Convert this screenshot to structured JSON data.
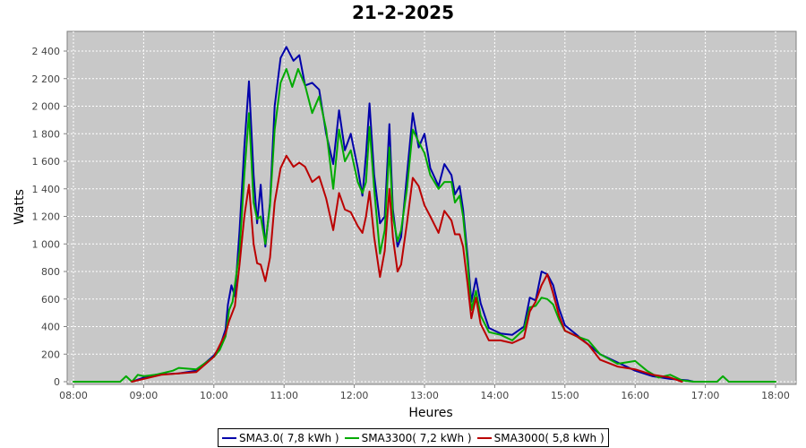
{
  "chart_data": {
    "type": "line",
    "title": "21-2-2025",
    "xlabel": "Heures",
    "ylabel": "Watts",
    "xlim": [
      "08:00",
      "18:00"
    ],
    "ylim": [
      0,
      2500
    ],
    "x_ticks": [
      "08:00",
      "09:00",
      "10:00",
      "11:00",
      "12:00",
      "13:00",
      "14:00",
      "15:00",
      "16:00",
      "17:00",
      "18:00"
    ],
    "y_ticks": [
      "0",
      "200",
      "400",
      "600",
      "800",
      "1 000",
      "1 200",
      "1 400",
      "1 600",
      "1 800",
      "2 000",
      "2 200",
      "2 400"
    ],
    "grid": true,
    "legend_position": "bottom",
    "series": [
      {
        "name": "SMA3.0( 7,8 kWh )",
        "color": "#0000aa",
        "points": [
          [
            "08:50",
            0
          ],
          [
            "09:00",
            30
          ],
          [
            "09:10",
            50
          ],
          [
            "09:30",
            60
          ],
          [
            "09:45",
            80
          ],
          [
            "10:00",
            190
          ],
          [
            "10:05",
            250
          ],
          [
            "10:10",
            380
          ],
          [
            "10:12",
            560
          ],
          [
            "10:15",
            700
          ],
          [
            "10:18",
            620
          ],
          [
            "10:22",
            1100
          ],
          [
            "10:26",
            1700
          ],
          [
            "10:30",
            2180
          ],
          [
            "10:34",
            1500
          ],
          [
            "10:37",
            1150
          ],
          [
            "10:40",
            1430
          ],
          [
            "10:44",
            980
          ],
          [
            "10:48",
            1300
          ],
          [
            "10:52",
            2000
          ],
          [
            "10:57",
            2350
          ],
          [
            "11:02",
            2430
          ],
          [
            "11:08",
            2330
          ],
          [
            "11:13",
            2370
          ],
          [
            "11:18",
            2150
          ],
          [
            "11:24",
            2170
          ],
          [
            "11:30",
            2120
          ],
          [
            "11:36",
            1800
          ],
          [
            "11:42",
            1580
          ],
          [
            "11:47",
            1970
          ],
          [
            "11:52",
            1680
          ],
          [
            "11:57",
            1800
          ],
          [
            "12:03",
            1550
          ],
          [
            "12:07",
            1350
          ],
          [
            "12:10",
            1650
          ],
          [
            "12:13",
            2020
          ],
          [
            "12:17",
            1500
          ],
          [
            "12:22",
            1150
          ],
          [
            "12:26",
            1200
          ],
          [
            "12:30",
            1870
          ],
          [
            "12:33",
            1250
          ],
          [
            "12:37",
            980
          ],
          [
            "12:40",
            1050
          ],
          [
            "12:45",
            1500
          ],
          [
            "12:50",
            1950
          ],
          [
            "12:55",
            1700
          ],
          [
            "13:00",
            1800
          ],
          [
            "13:05",
            1550
          ],
          [
            "13:12",
            1420
          ],
          [
            "13:17",
            1580
          ],
          [
            "13:23",
            1500
          ],
          [
            "13:26",
            1360
          ],
          [
            "13:30",
            1420
          ],
          [
            "13:33",
            1250
          ],
          [
            "13:37",
            900
          ],
          [
            "13:40",
            580
          ],
          [
            "13:44",
            750
          ],
          [
            "13:48",
            570
          ],
          [
            "13:55",
            390
          ],
          [
            "14:05",
            350
          ],
          [
            "14:15",
            340
          ],
          [
            "14:25",
            400
          ],
          [
            "14:30",
            610
          ],
          [
            "14:35",
            590
          ],
          [
            "14:40",
            800
          ],
          [
            "14:45",
            780
          ],
          [
            "14:50",
            700
          ],
          [
            "14:55",
            530
          ],
          [
            "15:00",
            410
          ],
          [
            "15:10",
            340
          ],
          [
            "15:20",
            270
          ],
          [
            "15:30",
            200
          ],
          [
            "15:45",
            140
          ],
          [
            "16:00",
            80
          ],
          [
            "16:15",
            40
          ],
          [
            "16:30",
            20
          ],
          [
            "16:45",
            10
          ],
          [
            "16:50",
            0
          ]
        ]
      },
      {
        "name": "SMA3300( 7,2 kWh )",
        "color": "#00aa00",
        "points": [
          [
            "08:00",
            0
          ],
          [
            "08:40",
            0
          ],
          [
            "08:45",
            40
          ],
          [
            "08:50",
            0
          ],
          [
            "08:55",
            50
          ],
          [
            "09:00",
            40
          ],
          [
            "09:10",
            50
          ],
          [
            "09:25",
            80
          ],
          [
            "09:30",
            100
          ],
          [
            "09:45",
            90
          ],
          [
            "10:00",
            180
          ],
          [
            "10:05",
            230
          ],
          [
            "10:10",
            330
          ],
          [
            "10:13",
            520
          ],
          [
            "10:16",
            580
          ],
          [
            "10:22",
            950
          ],
          [
            "10:26",
            1500
          ],
          [
            "10:30",
            1950
          ],
          [
            "10:34",
            1300
          ],
          [
            "10:37",
            1180
          ],
          [
            "10:40",
            1200
          ],
          [
            "10:44",
            1000
          ],
          [
            "10:48",
            1280
          ],
          [
            "10:52",
            1830
          ],
          [
            "10:57",
            2170
          ],
          [
            "11:02",
            2270
          ],
          [
            "11:07",
            2140
          ],
          [
            "11:12",
            2270
          ],
          [
            "11:18",
            2150
          ],
          [
            "11:24",
            1950
          ],
          [
            "11:30",
            2070
          ],
          [
            "11:36",
            1830
          ],
          [
            "11:42",
            1400
          ],
          [
            "11:47",
            1830
          ],
          [
            "11:52",
            1600
          ],
          [
            "11:57",
            1680
          ],
          [
            "12:03",
            1450
          ],
          [
            "12:07",
            1370
          ],
          [
            "12:10",
            1450
          ],
          [
            "12:13",
            1850
          ],
          [
            "12:17",
            1400
          ],
          [
            "12:22",
            930
          ],
          [
            "12:26",
            1100
          ],
          [
            "12:30",
            1700
          ],
          [
            "12:33",
            1200
          ],
          [
            "12:37",
            1020
          ],
          [
            "12:40",
            1100
          ],
          [
            "12:45",
            1400
          ],
          [
            "12:50",
            1830
          ],
          [
            "12:55",
            1740
          ],
          [
            "13:00",
            1660
          ],
          [
            "13:05",
            1500
          ],
          [
            "13:12",
            1400
          ],
          [
            "13:17",
            1450
          ],
          [
            "13:23",
            1450
          ],
          [
            "13:26",
            1300
          ],
          [
            "13:30",
            1350
          ],
          [
            "13:33",
            1200
          ],
          [
            "13:37",
            850
          ],
          [
            "13:40",
            520
          ],
          [
            "13:44",
            660
          ],
          [
            "13:48",
            480
          ],
          [
            "13:55",
            360
          ],
          [
            "14:05",
            340
          ],
          [
            "14:15",
            300
          ],
          [
            "14:25",
            380
          ],
          [
            "14:30",
            540
          ],
          [
            "14:35",
            550
          ],
          [
            "14:40",
            610
          ],
          [
            "14:45",
            600
          ],
          [
            "14:50",
            560
          ],
          [
            "14:55",
            450
          ],
          [
            "15:00",
            370
          ],
          [
            "15:10",
            330
          ],
          [
            "15:20",
            300
          ],
          [
            "15:30",
            200
          ],
          [
            "15:45",
            130
          ],
          [
            "16:00",
            150
          ],
          [
            "16:10",
            80
          ],
          [
            "16:20",
            30
          ],
          [
            "16:30",
            50
          ],
          [
            "16:40",
            10
          ],
          [
            "16:50",
            0
          ],
          [
            "17:00",
            0
          ],
          [
            "17:10",
            0
          ],
          [
            "17:15",
            40
          ],
          [
            "17:20",
            0
          ],
          [
            "18:00",
            0
          ]
        ]
      },
      {
        "name": "SMA3000( 5,8 kWh )",
        "color": "#bb0000",
        "points": [
          [
            "08:50",
            0
          ],
          [
            "09:00",
            20
          ],
          [
            "09:15",
            50
          ],
          [
            "09:30",
            60
          ],
          [
            "09:45",
            70
          ],
          [
            "10:00",
            180
          ],
          [
            "10:10",
            350
          ],
          [
            "10:13",
            440
          ],
          [
            "10:18",
            550
          ],
          [
            "10:22",
            850
          ],
          [
            "10:26",
            1200
          ],
          [
            "10:30",
            1430
          ],
          [
            "10:34",
            1000
          ],
          [
            "10:37",
            860
          ],
          [
            "10:40",
            850
          ],
          [
            "10:44",
            730
          ],
          [
            "10:48",
            900
          ],
          [
            "10:52",
            1300
          ],
          [
            "10:57",
            1550
          ],
          [
            "11:02",
            1640
          ],
          [
            "11:08",
            1560
          ],
          [
            "11:13",
            1590
          ],
          [
            "11:18",
            1560
          ],
          [
            "11:24",
            1450
          ],
          [
            "11:30",
            1490
          ],
          [
            "11:36",
            1330
          ],
          [
            "11:42",
            1100
          ],
          [
            "11:47",
            1370
          ],
          [
            "11:52",
            1250
          ],
          [
            "11:57",
            1230
          ],
          [
            "12:03",
            1130
          ],
          [
            "12:07",
            1080
          ],
          [
            "12:10",
            1200
          ],
          [
            "12:13",
            1380
          ],
          [
            "12:17",
            1050
          ],
          [
            "12:22",
            760
          ],
          [
            "12:26",
            950
          ],
          [
            "12:30",
            1400
          ],
          [
            "12:33",
            1050
          ],
          [
            "12:37",
            800
          ],
          [
            "12:40",
            850
          ],
          [
            "12:45",
            1150
          ],
          [
            "12:50",
            1480
          ],
          [
            "12:55",
            1420
          ],
          [
            "13:00",
            1280
          ],
          [
            "13:05",
            1200
          ],
          [
            "13:12",
            1080
          ],
          [
            "13:17",
            1240
          ],
          [
            "13:23",
            1170
          ],
          [
            "13:26",
            1070
          ],
          [
            "13:30",
            1070
          ],
          [
            "13:33",
            980
          ],
          [
            "13:37",
            700
          ],
          [
            "13:40",
            460
          ],
          [
            "13:44",
            610
          ],
          [
            "13:48",
            420
          ],
          [
            "13:55",
            300
          ],
          [
            "14:05",
            300
          ],
          [
            "14:15",
            280
          ],
          [
            "14:25",
            320
          ],
          [
            "14:30",
            510
          ],
          [
            "14:35",
            580
          ],
          [
            "14:40",
            700
          ],
          [
            "14:45",
            780
          ],
          [
            "14:50",
            640
          ],
          [
            "14:55",
            480
          ],
          [
            "15:00",
            370
          ],
          [
            "15:10",
            330
          ],
          [
            "15:20",
            270
          ],
          [
            "15:30",
            160
          ],
          [
            "15:45",
            110
          ],
          [
            "16:00",
            90
          ],
          [
            "16:15",
            50
          ],
          [
            "16:30",
            30
          ],
          [
            "16:40",
            0
          ]
        ]
      }
    ]
  }
}
